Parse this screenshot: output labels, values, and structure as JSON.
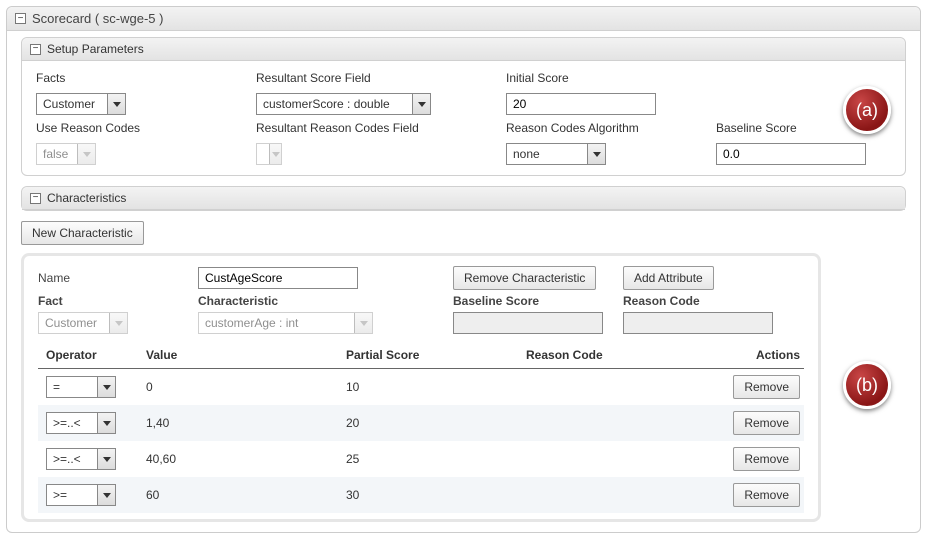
{
  "panel": {
    "title": "Scorecard ( sc-wge-5 )"
  },
  "setup": {
    "title": "Setup Parameters",
    "facts_label": "Facts",
    "facts_value": "Customer",
    "resultant_score_label": "Resultant Score Field",
    "resultant_score_value": "customerScore : double",
    "initial_score_label": "Initial Score",
    "initial_score_value": "20",
    "use_reason_codes_label": "Use Reason Codes",
    "use_reason_codes_value": "false",
    "resultant_reason_label": "Resultant Reason Codes Field",
    "resultant_reason_value": "",
    "reason_algo_label": "Reason Codes Algorithm",
    "reason_algo_value": "none",
    "baseline_label": "Baseline Score",
    "baseline_value": "0.0"
  },
  "characteristics": {
    "title": "Characteristics",
    "new_button": "New Characteristic"
  },
  "char": {
    "name_label": "Name",
    "name_value": "CustAgeScore",
    "remove_btn": "Remove Characteristic",
    "add_attr_btn": "Add Attribute",
    "fact_label": "Fact",
    "fact_value": "Customer",
    "characteristic_label": "Characteristic",
    "characteristic_value": "customerAge : int",
    "baseline_label": "Baseline Score",
    "baseline_value": "",
    "reason_label": "Reason Code",
    "reason_value": ""
  },
  "table": {
    "headers": {
      "operator": "Operator",
      "value": "Value",
      "partial": "Partial Score",
      "reason": "Reason Code",
      "actions": "Actions"
    },
    "rows": [
      {
        "op": "=",
        "value": "0",
        "partial": "10",
        "reason": ""
      },
      {
        "op": ">=..<",
        "value": "1,40",
        "partial": "20",
        "reason": ""
      },
      {
        "op": ">=..<",
        "value": "40,60",
        "partial": "25",
        "reason": ""
      },
      {
        "op": ">=",
        "value": "60",
        "partial": "30",
        "reason": ""
      }
    ],
    "remove_label": "Remove"
  },
  "badges": {
    "a": "(a)",
    "b": "(b)"
  },
  "colors": {
    "panel_border": "#cccccc",
    "header_bg_top": "#f3f3f3",
    "header_bg_bottom": "#e3e3e3",
    "row_odd_bg": "#f3f6f9",
    "badge_gradient_light": "#c94646",
    "badge_gradient_dark": "#8a1616"
  }
}
